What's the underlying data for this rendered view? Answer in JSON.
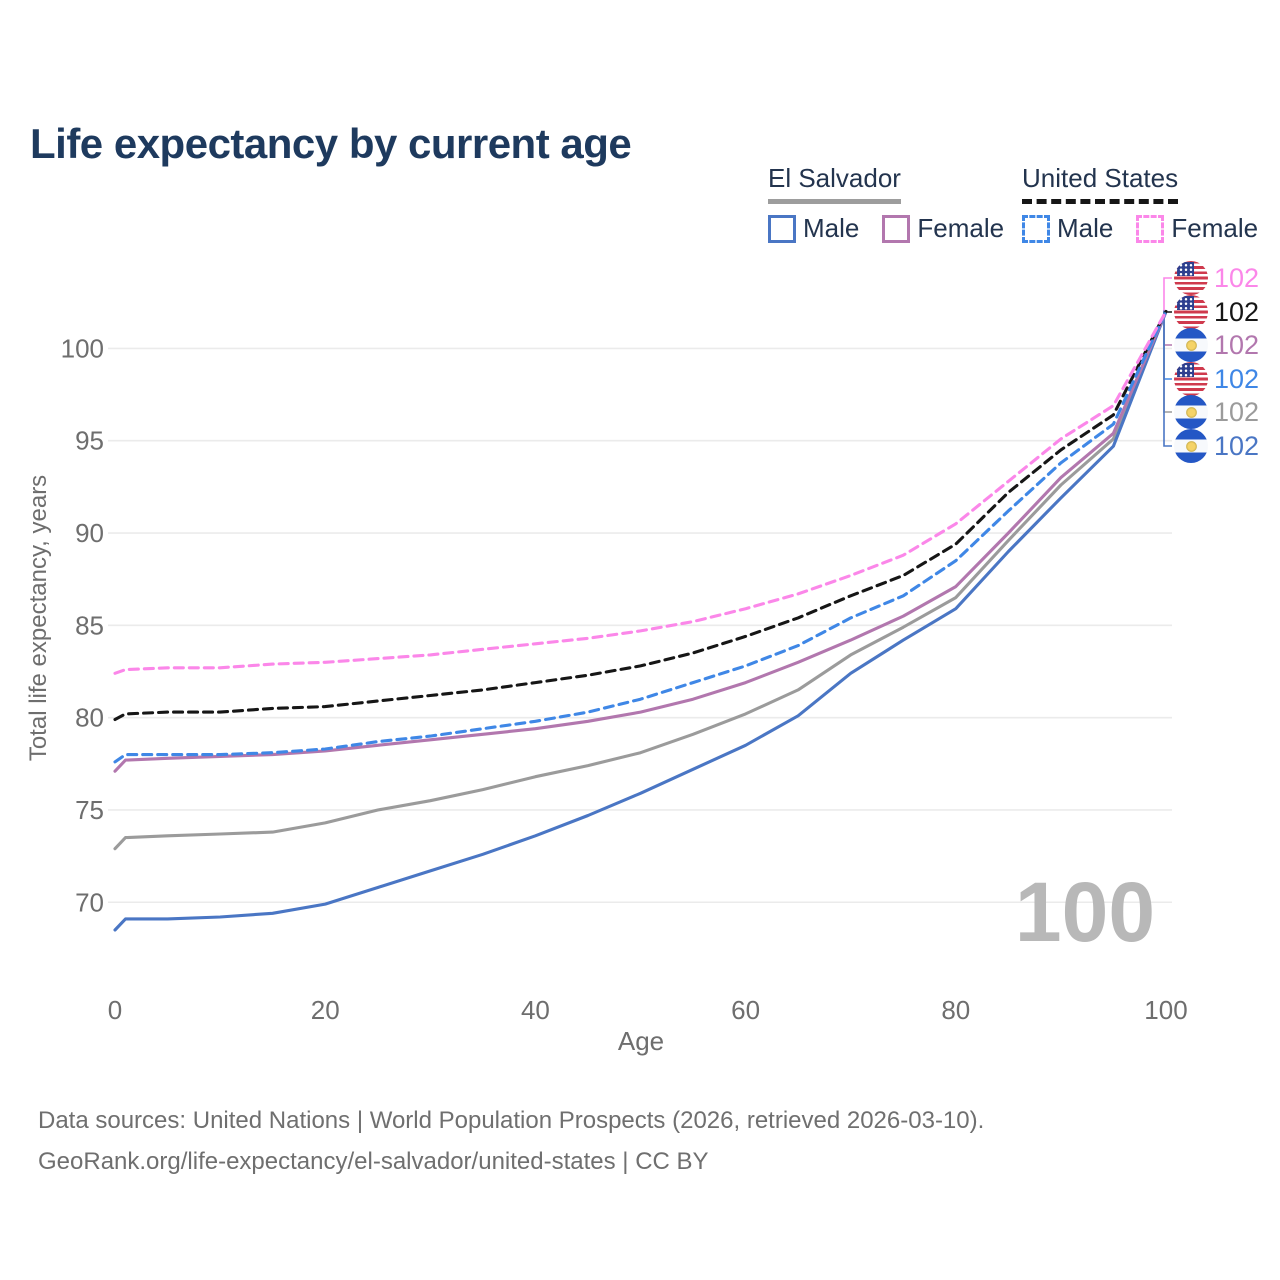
{
  "title": "Life expectancy by current age",
  "legend": {
    "groups": [
      {
        "label": "El Salvador",
        "line_style": "solid",
        "underline_color": "#9d9d9d",
        "items": [
          {
            "label": "Male",
            "color": "#4a76c4",
            "dashed": false
          },
          {
            "label": "Female",
            "color": "#b277ae",
            "dashed": false
          }
        ]
      },
      {
        "label": "United States",
        "line_style": "dashed",
        "underline_color": "#161616",
        "items": [
          {
            "label": "Male",
            "color": "#3f87e6",
            "dashed": true
          },
          {
            "label": "Female",
            "color": "#fb87e9",
            "dashed": true
          }
        ]
      }
    ]
  },
  "chart_data": {
    "type": "line",
    "title": "Life expectancy by current age",
    "xlabel": "Age",
    "ylabel": "Total life expectancy, years",
    "x_ticks": [
      0,
      20,
      40,
      60,
      80,
      100
    ],
    "y_ticks": [
      70,
      75,
      80,
      85,
      90,
      95,
      100
    ],
    "xlim": [
      0,
      100
    ],
    "ylim": [
      67.5,
      103
    ],
    "grid": "horizontal",
    "legend_position": "top-right",
    "watermark": "100",
    "ages": [
      0,
      1,
      5,
      10,
      15,
      20,
      25,
      30,
      35,
      40,
      45,
      50,
      55,
      60,
      65,
      70,
      75,
      80,
      85,
      90,
      95,
      100
    ],
    "series": [
      {
        "id": "es_both",
        "name": "El Salvador",
        "country": "El Salvador",
        "sex": "Both",
        "color": "#9b9b9b",
        "dashed": false,
        "values": [
          72.9,
          73.5,
          73.6,
          73.7,
          73.8,
          74.3,
          75.0,
          75.5,
          76.1,
          76.8,
          77.4,
          78.1,
          79.1,
          80.2,
          81.5,
          83.4,
          84.9,
          86.5,
          89.6,
          92.6,
          95.1,
          102
        ]
      },
      {
        "id": "es_male",
        "name": "El Salvador Male",
        "country": "El Salvador",
        "sex": "Male",
        "color": "#4a76c4",
        "dashed": false,
        "values": [
          68.5,
          69.1,
          69.1,
          69.2,
          69.4,
          69.9,
          70.8,
          71.7,
          72.6,
          73.6,
          74.7,
          75.9,
          77.2,
          78.5,
          80.1,
          82.4,
          84.2,
          85.9,
          89.0,
          91.9,
          94.7,
          102
        ]
      },
      {
        "id": "es_female",
        "name": "El Salvador Female",
        "country": "El Salvador",
        "sex": "Female",
        "color": "#b277ae",
        "dashed": false,
        "values": [
          77.1,
          77.7,
          77.8,
          77.9,
          78.0,
          78.2,
          78.5,
          78.8,
          79.1,
          79.4,
          79.8,
          80.3,
          81.0,
          81.9,
          83.0,
          84.2,
          85.5,
          87.1,
          90.0,
          93.0,
          95.4,
          102
        ]
      },
      {
        "id": "us_both",
        "name": "United States",
        "country": "United States",
        "sex": "Both",
        "color": "#161616",
        "dashed": true,
        "values": [
          79.9,
          80.2,
          80.3,
          80.3,
          80.5,
          80.6,
          80.9,
          81.2,
          81.5,
          81.9,
          82.3,
          82.8,
          83.5,
          84.4,
          85.4,
          86.6,
          87.7,
          89.4,
          92.2,
          94.5,
          96.4,
          102
        ]
      },
      {
        "id": "us_male",
        "name": "United States Male",
        "country": "United States",
        "sex": "Male",
        "color": "#3f87e6",
        "dashed": true,
        "values": [
          77.6,
          78.0,
          78.0,
          78.0,
          78.1,
          78.3,
          78.7,
          79.0,
          79.4,
          79.8,
          80.3,
          81.0,
          81.9,
          82.8,
          83.9,
          85.4,
          86.6,
          88.5,
          91.2,
          93.8,
          95.9,
          102
        ]
      },
      {
        "id": "us_female",
        "name": "United States Female",
        "country": "United States",
        "sex": "Female",
        "color": "#fb87e9",
        "dashed": true,
        "values": [
          82.4,
          82.6,
          82.7,
          82.7,
          82.9,
          83.0,
          83.2,
          83.4,
          83.7,
          84.0,
          84.3,
          84.7,
          85.2,
          85.9,
          86.7,
          87.7,
          88.8,
          90.5,
          92.8,
          95.1,
          96.9,
          102
        ]
      }
    ],
    "end_labels": [
      {
        "series": "us_female",
        "flag": "us",
        "value": "102",
        "color": "#fb87e9"
      },
      {
        "series": "us_both",
        "flag": "us",
        "value": "102",
        "color": "#161616"
      },
      {
        "series": "es_female",
        "flag": "sv",
        "value": "102",
        "color": "#b277ae"
      },
      {
        "series": "us_male",
        "flag": "us",
        "value": "102",
        "color": "#3f87e6"
      },
      {
        "series": "es_both",
        "flag": "sv",
        "value": "102",
        "color": "#9b9b9b"
      },
      {
        "series": "es_male",
        "flag": "sv",
        "value": "102",
        "color": "#4a76c4"
      }
    ]
  },
  "footer": {
    "line1": "Data sources: United Nations | World Population Prospects (2026, retrieved 2026-03-10).",
    "line2": "GeoRank.org/life-expectancy/el-salvador/united-states | CC BY"
  }
}
